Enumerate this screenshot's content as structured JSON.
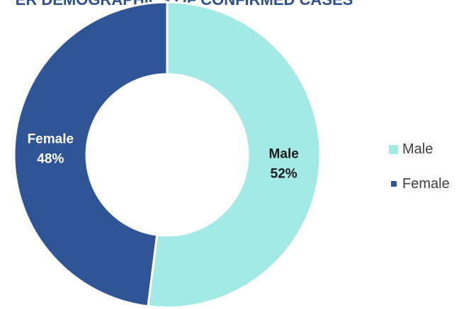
{
  "chart_data": {
    "type": "pie",
    "title": "ER DEMOGRAPHICS OF CONFIRMED CASES",
    "categories": [
      "Male",
      "Female"
    ],
    "values": [
      52,
      48
    ],
    "slice_labels": [
      {
        "name": "Male",
        "percent": "52%"
      },
      {
        "name": "Female",
        "percent": "48%"
      }
    ],
    "colors": [
      "#a3e9e6",
      "#2f5597"
    ],
    "label_colors": [
      "#1a1a1a",
      "#ffffff"
    ],
    "legend": {
      "placement": "right",
      "items": [
        {
          "label": "Male",
          "color": "#a3e9e6"
        },
        {
          "label": "Female",
          "color": "#2f5597"
        }
      ]
    }
  }
}
